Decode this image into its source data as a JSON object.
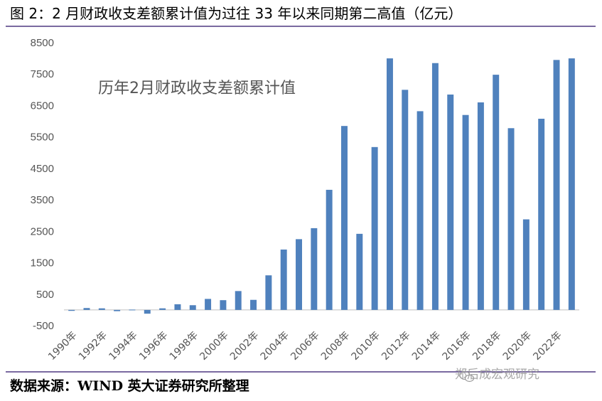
{
  "figure_title": "图 2：2 月财政收支差额累计值为过往 33 年以来同期第二高值（亿元）",
  "source_note": "数据来源：WIND  英大证券研究所整理",
  "watermark": "郑后成宏观研究",
  "colors": {
    "bar": "#4f81bd",
    "rule": "#7a6aa0",
    "axis": "#bfbfbf"
  },
  "chart_data": {
    "type": "bar",
    "title": "历年2月财政收支差额累计值",
    "xlabel": "",
    "ylabel": "",
    "ylim": [
      -500,
      8500
    ],
    "yticks": [
      -500,
      500,
      1500,
      2500,
      3500,
      4500,
      5500,
      6500,
      7500,
      8500
    ],
    "xtick_labels": [
      "1990年",
      "1992年",
      "1994年",
      "1996年",
      "1998年",
      "2000年",
      "2002年",
      "2004年",
      "2006年",
      "2008年",
      "2010年",
      "2012年",
      "2014年",
      "2016年",
      "2018年",
      "2020年",
      "2022年"
    ],
    "categories": [
      "1990",
      "1991",
      "1992",
      "1993",
      "1994",
      "1995",
      "1996",
      "1997",
      "1998",
      "1999",
      "2000",
      "2001",
      "2002",
      "2003",
      "2004",
      "2005",
      "2006",
      "2007",
      "2008",
      "2009",
      "2010",
      "2011",
      "2012",
      "2013",
      "2014",
      "2015",
      "2016",
      "2017",
      "2018",
      "2019",
      "2020",
      "2021",
      "2022",
      "2023"
    ],
    "values": [
      -30,
      60,
      50,
      -40,
      10,
      -120,
      50,
      180,
      150,
      350,
      310,
      600,
      320,
      1100,
      1920,
      2250,
      2600,
      3820,
      5850,
      2420,
      5180,
      8000,
      7000,
      6320,
      7850,
      6850,
      6200,
      6600,
      7480,
      5780,
      2880,
      6080,
      7950,
      8000
    ],
    "grid": false,
    "legend": "none"
  }
}
